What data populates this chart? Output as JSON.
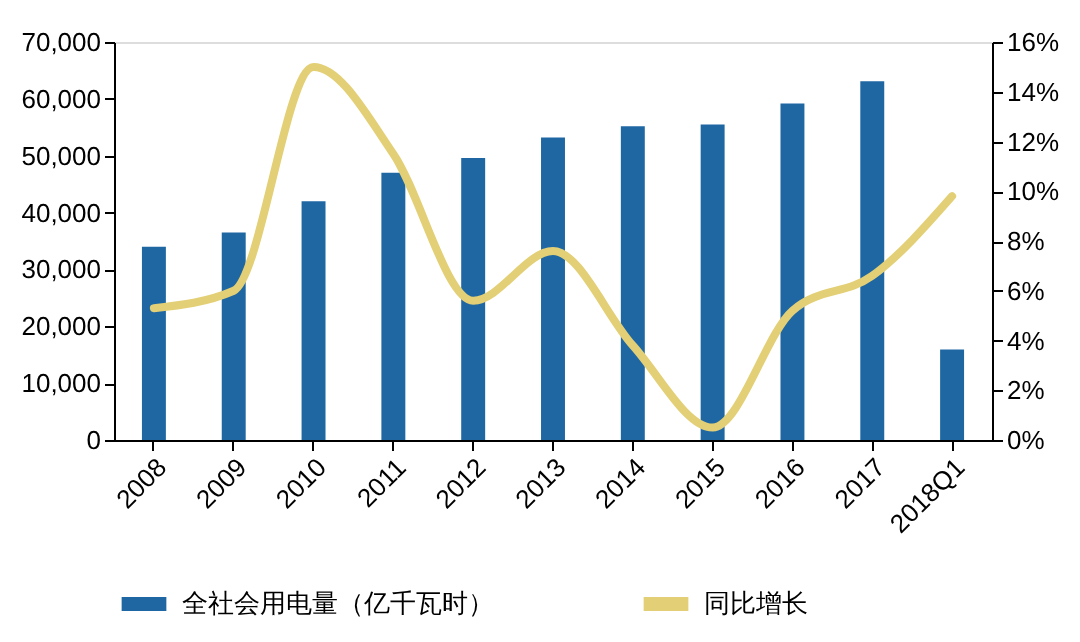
{
  "chart_data": {
    "type": "bar",
    "categories": [
      "2008",
      "2009",
      "2010",
      "2011",
      "2012",
      "2013",
      "2014",
      "2015",
      "2016",
      "2017",
      "2018Q1"
    ],
    "series": [
      {
        "name": "全社会用电量（亿千瓦时）",
        "color": "#1f67a3",
        "values": [
          34000,
          36500,
          42000,
          47000,
          49600,
          53200,
          55200,
          55500,
          59200,
          63100,
          15900
        ]
      },
      {
        "name": "同比增长",
        "type": "line",
        "axis": "y2",
        "color": "#e3cf75",
        "values": [
          5.3,
          6.0,
          15.0,
          11.5,
          5.6,
          7.6,
          3.8,
          0.5,
          5.2,
          6.6,
          9.8
        ]
      }
    ],
    "ylim": [
      0,
      70000
    ],
    "yticks": [
      {
        "value": 0,
        "label": "0"
      },
      {
        "value": 10000,
        "label": "10,000"
      },
      {
        "value": 20000,
        "label": "20,000"
      },
      {
        "value": 30000,
        "label": "30,000"
      },
      {
        "value": 40000,
        "label": "40,000"
      },
      {
        "value": 50000,
        "label": "50,000"
      },
      {
        "value": 60000,
        "label": "60,000"
      },
      {
        "value": 70000,
        "label": "70,000"
      }
    ],
    "y2lim": [
      0,
      16
    ],
    "y2ticks": [
      {
        "value": 0,
        "label": "0%"
      },
      {
        "value": 2,
        "label": "2%"
      },
      {
        "value": 4,
        "label": "4%"
      },
      {
        "value": 6,
        "label": "6%"
      },
      {
        "value": 8,
        "label": "8%"
      },
      {
        "value": 10,
        "label": "10%"
      },
      {
        "value": 12,
        "label": "12%"
      },
      {
        "value": 14,
        "label": "14%"
      },
      {
        "value": 16,
        "label": "16%"
      }
    ],
    "grid": false,
    "legend": "bottom",
    "line_style": "solid",
    "marker": "none"
  }
}
